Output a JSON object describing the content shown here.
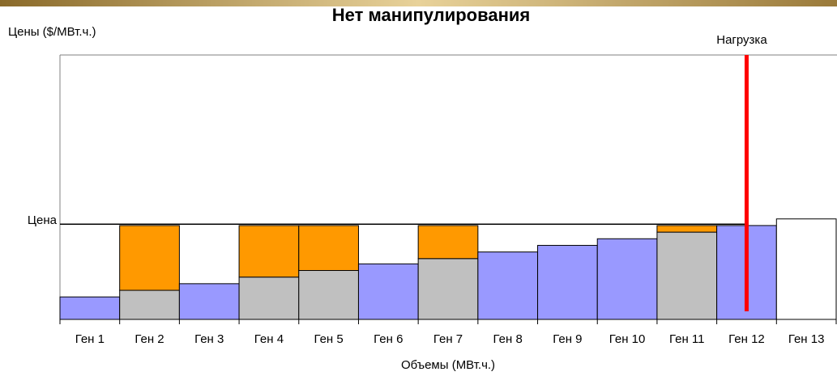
{
  "chart_data": {
    "type": "stacked_bar",
    "title": "Нет  манипулирования",
    "y_label": "Цены ($/МВт.ч.)",
    "x_label": "Объемы (МВт.ч.)",
    "categories": [
      "Ген 1",
      "Ген 2",
      "Ген 3",
      "Ген 4",
      "Ген 5",
      "Ген 6",
      "Ген 7",
      "Ген 8",
      "Ген 9",
      "Ген 10",
      "Ген 11",
      "Ген 12",
      "Ген 13"
    ],
    "series": [
      {
        "color": "#9999ff",
        "values": [
          8.5,
          null,
          13.5,
          null,
          null,
          21,
          null,
          25.5,
          28,
          30.5,
          null,
          35.5,
          null
        ]
      },
      {
        "color": "#c0c0c0",
        "values": [
          null,
          11,
          null,
          16,
          18.5,
          null,
          23,
          null,
          null,
          null,
          33,
          null,
          null
        ]
      },
      {
        "color": "#ff9900",
        "values": [
          null,
          24.5,
          null,
          19.5,
          17,
          null,
          12.5,
          null,
          null,
          null,
          2.5,
          null,
          null
        ]
      },
      {
        "color": "#ffffff",
        "values": [
          null,
          null,
          null,
          null,
          null,
          null,
          null,
          null,
          null,
          null,
          null,
          null,
          38
        ]
      }
    ],
    "ylim": [
      0,
      100
    ],
    "price": {
      "label": "Цена",
      "value": 36
    },
    "load": {
      "label": "Нагрузка",
      "x": 11.5,
      "color": "#ff0000"
    }
  }
}
